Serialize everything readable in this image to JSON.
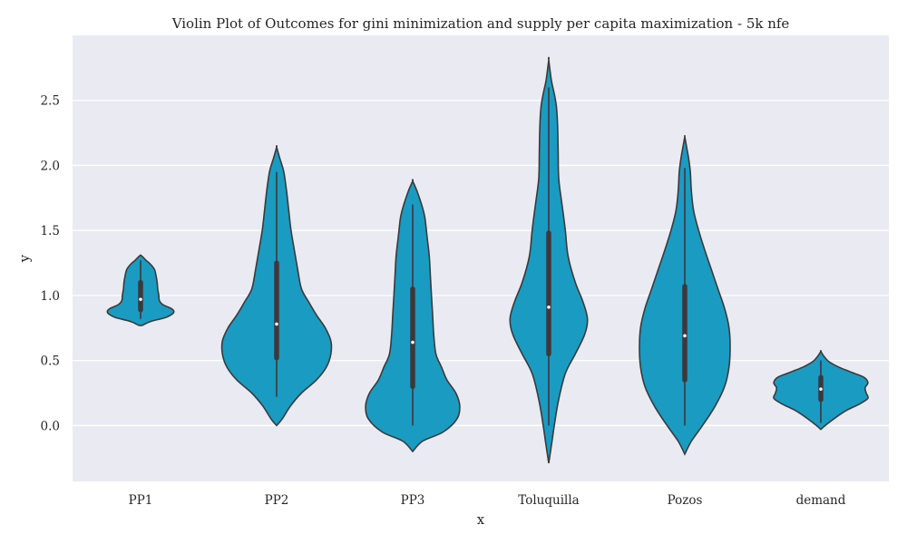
{
  "chart_data": {
    "type": "violin",
    "title": "Violin Plot of Outcomes for gini minimization and supply per capita maximization - 5k nfe",
    "xlabel": "x",
    "ylabel": "y",
    "categories": [
      "PP1",
      "PP2",
      "PP3",
      "Toluquilla",
      "Pozos",
      "demand"
    ],
    "ylim": [
      -0.43,
      3.0
    ],
    "yticks": [
      0.0,
      0.5,
      1.0,
      1.5,
      2.0,
      2.5
    ],
    "ytick_labels": [
      "0.0",
      "0.5",
      "1.0",
      "1.5",
      "2.0",
      "2.5"
    ],
    "grid": "horizontal",
    "colors": {
      "fill": "#1a9bc2",
      "edge": "#3a3a3a",
      "background": "#eaeaf2",
      "grid": "#ffffff"
    },
    "violins": [
      {
        "name": "PP1",
        "min": 0.77,
        "max": 1.31,
        "q1": 0.89,
        "median": 0.97,
        "q3": 1.1,
        "whisker_low": 0.82,
        "whisker_high": 1.27,
        "density": [
          [
            0.77,
            0.03
          ],
          [
            0.8,
            0.18
          ],
          [
            0.83,
            0.45
          ],
          [
            0.86,
            0.58
          ],
          [
            0.88,
            0.6
          ],
          [
            0.9,
            0.55
          ],
          [
            0.93,
            0.4
          ],
          [
            0.96,
            0.34
          ],
          [
            1.0,
            0.33
          ],
          [
            1.05,
            0.31
          ],
          [
            1.1,
            0.3
          ],
          [
            1.15,
            0.28
          ],
          [
            1.2,
            0.25
          ],
          [
            1.24,
            0.18
          ],
          [
            1.27,
            0.1
          ],
          [
            1.3,
            0.03
          ],
          [
            1.31,
            0.0
          ]
        ]
      },
      {
        "name": "PP2",
        "min": 0.0,
        "max": 2.14,
        "q1": 0.52,
        "median": 0.78,
        "q3": 1.25,
        "whisker_low": 0.22,
        "whisker_high": 1.95,
        "density": [
          [
            0.0,
            0.0
          ],
          [
            0.05,
            0.1
          ],
          [
            0.15,
            0.25
          ],
          [
            0.25,
            0.45
          ],
          [
            0.35,
            0.72
          ],
          [
            0.45,
            0.9
          ],
          [
            0.55,
            0.98
          ],
          [
            0.65,
            0.98
          ],
          [
            0.75,
            0.88
          ],
          [
            0.85,
            0.72
          ],
          [
            0.95,
            0.58
          ],
          [
            1.05,
            0.45
          ],
          [
            1.2,
            0.38
          ],
          [
            1.35,
            0.32
          ],
          [
            1.5,
            0.26
          ],
          [
            1.65,
            0.22
          ],
          [
            1.8,
            0.18
          ],
          [
            1.95,
            0.13
          ],
          [
            2.05,
            0.06
          ],
          [
            2.14,
            0.0
          ]
        ]
      },
      {
        "name": "PP3",
        "min": -0.2,
        "max": 1.88,
        "q1": 0.3,
        "median": 0.64,
        "q3": 1.05,
        "whisker_low": 0.0,
        "whisker_high": 1.7,
        "density": [
          [
            -0.2,
            0.0
          ],
          [
            -0.12,
            0.18
          ],
          [
            -0.05,
            0.55
          ],
          [
            0.05,
            0.8
          ],
          [
            0.15,
            0.85
          ],
          [
            0.25,
            0.78
          ],
          [
            0.35,
            0.62
          ],
          [
            0.45,
            0.52
          ],
          [
            0.55,
            0.42
          ],
          [
            0.7,
            0.38
          ],
          [
            0.85,
            0.36
          ],
          [
            1.0,
            0.34
          ],
          [
            1.15,
            0.32
          ],
          [
            1.3,
            0.3
          ],
          [
            1.45,
            0.26
          ],
          [
            1.6,
            0.22
          ],
          [
            1.7,
            0.16
          ],
          [
            1.8,
            0.08
          ],
          [
            1.88,
            0.0
          ]
        ]
      },
      {
        "name": "Toluquilla",
        "min": -0.29,
        "max": 2.81,
        "q1": 0.55,
        "median": 0.91,
        "q3": 1.48,
        "whisker_low": 0.0,
        "whisker_high": 2.6,
        "density": [
          [
            -0.29,
            0.0
          ],
          [
            -0.15,
            0.05
          ],
          [
            0.0,
            0.1
          ],
          [
            0.2,
            0.18
          ],
          [
            0.4,
            0.3
          ],
          [
            0.55,
            0.48
          ],
          [
            0.7,
            0.65
          ],
          [
            0.82,
            0.7
          ],
          [
            0.95,
            0.62
          ],
          [
            1.1,
            0.48
          ],
          [
            1.3,
            0.35
          ],
          [
            1.5,
            0.3
          ],
          [
            1.7,
            0.24
          ],
          [
            1.9,
            0.18
          ],
          [
            2.1,
            0.17
          ],
          [
            2.3,
            0.16
          ],
          [
            2.45,
            0.14
          ],
          [
            2.55,
            0.1
          ],
          [
            2.65,
            0.05
          ],
          [
            2.81,
            0.0
          ]
        ]
      },
      {
        "name": "Pozos",
        "min": -0.22,
        "max": 2.22,
        "q1": 0.35,
        "median": 0.69,
        "q3": 1.07,
        "whisker_low": 0.0,
        "whisker_high": 1.98,
        "density": [
          [
            -0.22,
            0.0
          ],
          [
            -0.12,
            0.12
          ],
          [
            0.0,
            0.32
          ],
          [
            0.15,
            0.55
          ],
          [
            0.3,
            0.72
          ],
          [
            0.45,
            0.8
          ],
          [
            0.6,
            0.82
          ],
          [
            0.75,
            0.8
          ],
          [
            0.9,
            0.72
          ],
          [
            1.05,
            0.6
          ],
          [
            1.2,
            0.48
          ],
          [
            1.35,
            0.36
          ],
          [
            1.5,
            0.25
          ],
          [
            1.65,
            0.16
          ],
          [
            1.8,
            0.12
          ],
          [
            1.95,
            0.1
          ],
          [
            2.05,
            0.07
          ],
          [
            2.15,
            0.03
          ],
          [
            2.22,
            0.0
          ]
        ]
      },
      {
        "name": "demand",
        "min": -0.03,
        "max": 0.57,
        "q1": 0.2,
        "median": 0.28,
        "q3": 0.37,
        "whisker_low": 0.02,
        "whisker_high": 0.5,
        "density": [
          [
            -0.03,
            0.0
          ],
          [
            0.0,
            0.08
          ],
          [
            0.04,
            0.2
          ],
          [
            0.08,
            0.33
          ],
          [
            0.12,
            0.48
          ],
          [
            0.17,
            0.72
          ],
          [
            0.21,
            0.85
          ],
          [
            0.25,
            0.82
          ],
          [
            0.29,
            0.8
          ],
          [
            0.33,
            0.85
          ],
          [
            0.37,
            0.78
          ],
          [
            0.41,
            0.55
          ],
          [
            0.45,
            0.32
          ],
          [
            0.49,
            0.15
          ],
          [
            0.53,
            0.06
          ],
          [
            0.57,
            0.0
          ]
        ]
      }
    ]
  }
}
